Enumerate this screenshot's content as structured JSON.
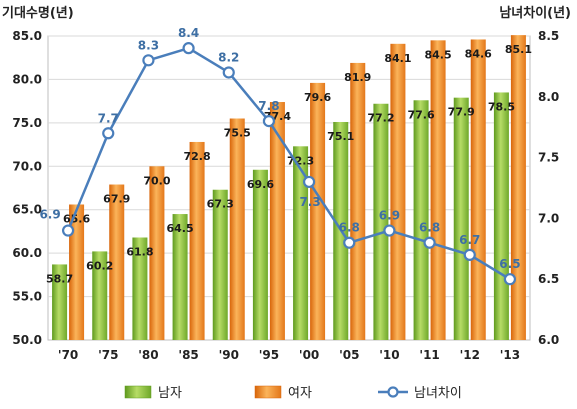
{
  "chart_data": {
    "type": "bar",
    "title": "",
    "ylabel_left": "기대수명(년)",
    "ylabel_right": "남녀차이(년)",
    "categories": [
      "'70",
      "'75",
      "'80",
      "'85",
      "'90",
      "'95",
      "'00",
      "'05",
      "'10",
      "'11",
      "'12",
      "'13"
    ],
    "ylim_left": [
      50.0,
      85.0
    ],
    "yticks_left": [
      "50.0",
      "55.0",
      "60.0",
      "65.0",
      "70.0",
      "75.0",
      "80.0",
      "85.0"
    ],
    "ylim_right": [
      6.0,
      8.5
    ],
    "yticks_right": [
      "6.0",
      "6.5",
      "7.0",
      "7.5",
      "8.0",
      "8.5"
    ],
    "series": [
      {
        "name": "남자",
        "type": "bar",
        "axis": "left",
        "values": [
          58.7,
          60.2,
          61.8,
          64.5,
          67.3,
          69.6,
          72.3,
          75.1,
          77.2,
          77.6,
          77.9,
          78.5
        ],
        "labels": [
          "58.7",
          "60.2",
          "61.8",
          "64.5",
          "67.3",
          "69.6",
          "72.3",
          "75.1",
          "77.2",
          "77.6",
          "77.9",
          "78.5"
        ],
        "color": "#8dc63f"
      },
      {
        "name": "여자",
        "type": "bar",
        "axis": "left",
        "values": [
          65.6,
          67.9,
          70.0,
          72.8,
          75.5,
          77.4,
          79.6,
          81.9,
          84.1,
          84.5,
          84.6,
          85.1
        ],
        "labels": [
          "65.6",
          "67.9",
          "70.0",
          "72.8",
          "75.5",
          "77.4",
          "79.6",
          "81.9",
          "84.1",
          "84.5",
          "84.6",
          "85.1"
        ],
        "color": "#f7941d"
      },
      {
        "name": "남녀차이",
        "type": "line",
        "axis": "right",
        "values": [
          6.9,
          7.7,
          8.3,
          8.4,
          8.2,
          7.8,
          7.3,
          6.8,
          6.9,
          6.8,
          6.7,
          6.5
        ],
        "labels": [
          "6.9",
          "7.7",
          "8.3",
          "8.4",
          "8.2",
          "7.8",
          "7.3",
          "6.8",
          "6.9",
          "6.8",
          "6.7",
          "6.5"
        ],
        "color": "#4a7ebb"
      }
    ],
    "grid": true,
    "legend_position": "bottom"
  }
}
